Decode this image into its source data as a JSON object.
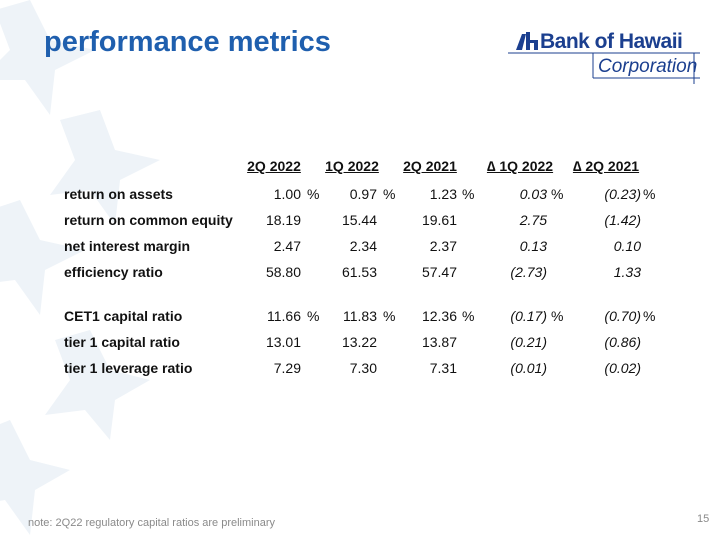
{
  "header": {
    "title": "performance metrics"
  },
  "logo": {
    "name": "Bank of Hawaii",
    "subtitle": "Corporation"
  },
  "table": {
    "columns": [
      "2Q 2022",
      "1Q 2022",
      "2Q 2021",
      "∆ 1Q 2022",
      "∆ 2Q 2021"
    ],
    "groups": [
      [
        {
          "label": "return on assets",
          "values": [
            "1.00",
            "0.97",
            "1.23",
            "0.03",
            "(0.23)"
          ],
          "units": [
            "%",
            "%",
            "%",
            "%",
            "%"
          ]
        },
        {
          "label": "return on common equity",
          "values": [
            "18.19",
            "15.44",
            "19.61",
            "2.75",
            "(1.42)"
          ]
        },
        {
          "label": "net interest margin",
          "values": [
            "2.47",
            "2.34",
            "2.37",
            "0.13",
            "0.10"
          ]
        },
        {
          "label": "efficiency ratio",
          "values": [
            "58.80",
            "61.53",
            "57.47",
            "(2.73)",
            "1.33"
          ]
        }
      ],
      [
        {
          "label": "CET1 capital ratio",
          "values": [
            "11.66",
            "11.83",
            "12.36",
            "(0.17)",
            "(0.70)"
          ],
          "units": [
            "%",
            "%",
            "%",
            "%",
            "%"
          ]
        },
        {
          "label": "tier 1 capital ratio",
          "values": [
            "13.01",
            "13.22",
            "13.87",
            "(0.21)",
            "(0.86)"
          ]
        },
        {
          "label": "tier 1 leverage ratio",
          "values": [
            "7.29",
            "7.30",
            "7.31",
            "(0.01)",
            "(0.02)"
          ]
        }
      ]
    ]
  },
  "footer": {
    "note": "note: 2Q22 regulatory capital ratios are preliminary",
    "page": "15"
  }
}
